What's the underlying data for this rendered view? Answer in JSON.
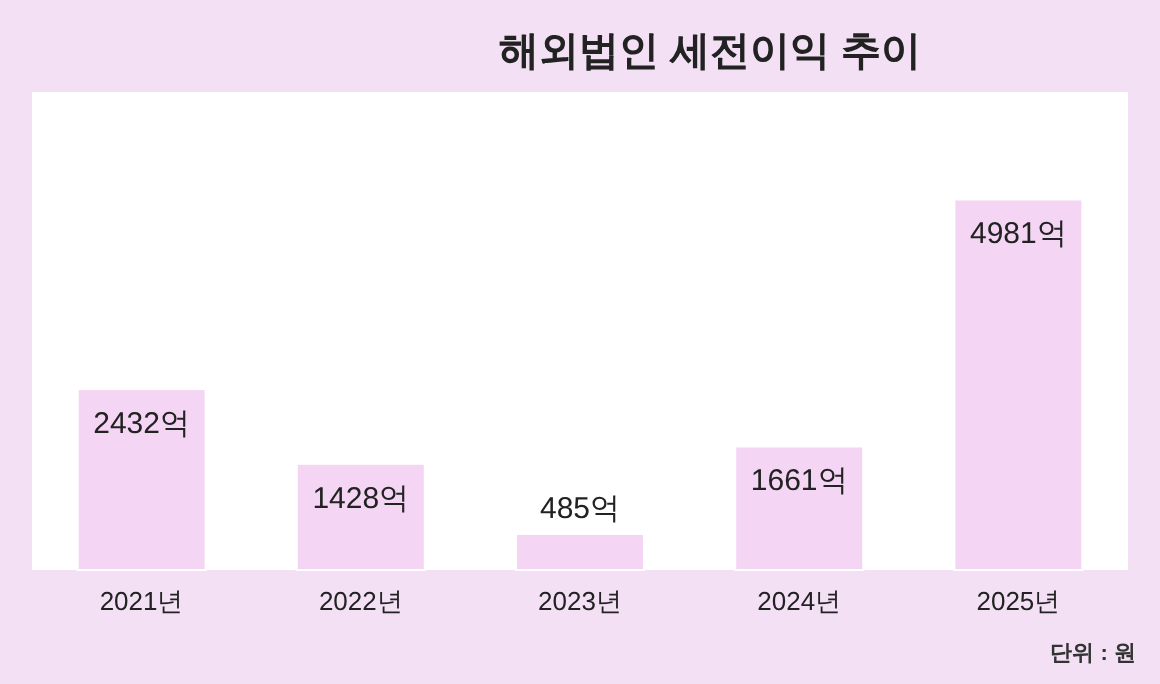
{
  "chart_data": {
    "type": "bar",
    "title": "해외법인 세전이익 추이",
    "categories": [
      "2021년",
      "2022년",
      "2023년",
      "2024년",
      "2025년"
    ],
    "values": [
      2432,
      1428,
      485,
      1661,
      4981
    ],
    "value_labels": [
      "2432억",
      "1428억",
      "485억",
      "1661억",
      "4981억"
    ],
    "color": "#f4d6f4",
    "annotations": [
      "단위 : 원"
    ]
  }
}
